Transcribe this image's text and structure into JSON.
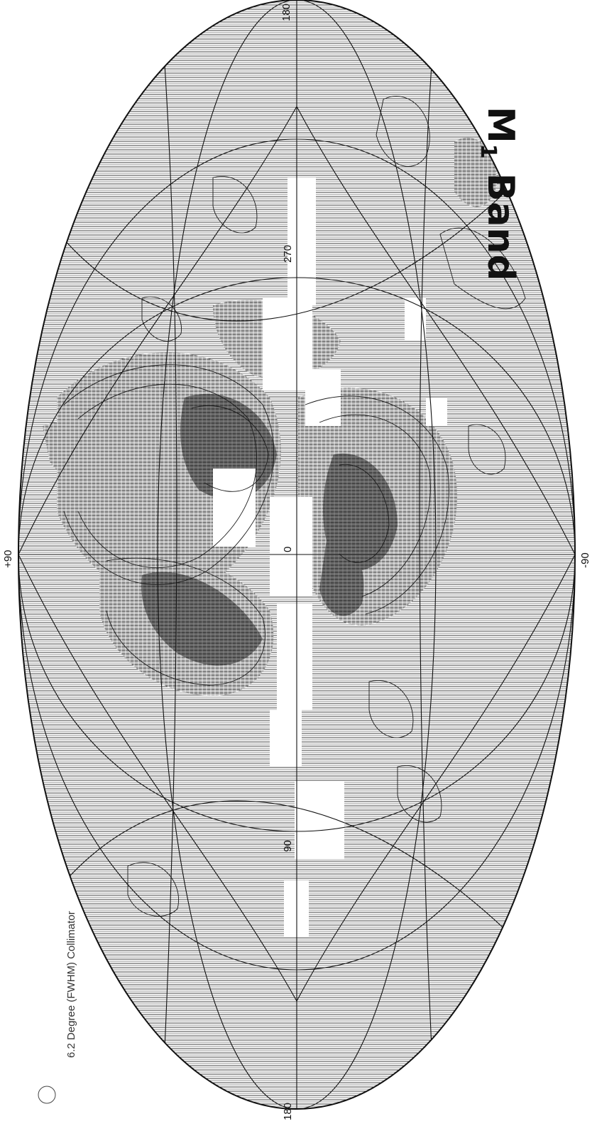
{
  "title": {
    "main": "M",
    "subscript": "1",
    "rest": " Band"
  },
  "collimator_label": "6.2 Degree (FWHM) Collimator",
  "longitude_labels": [
    "180",
    "270",
    "0",
    "90",
    "180"
  ],
  "latitude_labels": [
    "+90",
    "-90"
  ],
  "colors": {
    "ink": "#1a1a1a",
    "background": "#ffffff"
  }
}
